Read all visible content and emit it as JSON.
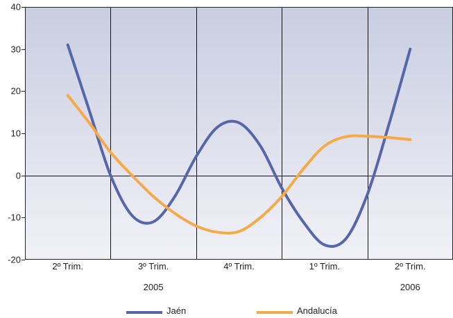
{
  "chart_data": {
    "type": "line",
    "categories": [
      "2º Trim.",
      "3º Trim.",
      "4º Trim.",
      "1º Trim.",
      "2º Trim."
    ],
    "years": [
      {
        "label": "2005",
        "category_index": 1
      },
      {
        "label": "2006",
        "category_index": 4
      }
    ],
    "ylim": [
      -20,
      40
    ],
    "yticks": [
      -20,
      -10,
      0,
      10,
      20,
      30,
      40
    ],
    "grid": true,
    "legend_position": "bottom",
    "colors": {
      "Jaén": "#5566aa",
      "Andalucía": "#f5aa48"
    },
    "series": [
      {
        "name": "Jaén",
        "x": [
          0,
          0.25,
          0.5,
          0.75,
          1,
          1.25,
          1.5,
          1.75,
          2,
          2.25,
          2.5,
          2.75,
          3,
          3.25,
          3.5,
          3.75,
          4
        ],
        "values": [
          31,
          15.5,
          0,
          -9.5,
          -11,
          -5,
          4.5,
          11.5,
          12.5,
          7,
          -3,
          -11,
          -16.5,
          -15,
          -4.5,
          12,
          30
        ]
      },
      {
        "name": "Andalucía",
        "x": [
          0,
          0.25,
          0.5,
          0.75,
          1,
          1.25,
          1.5,
          1.75,
          2,
          2.25,
          2.5,
          2.75,
          3,
          3.25,
          3.5,
          3.75,
          4
        ],
        "values": [
          19,
          12.5,
          5.5,
          0,
          -5,
          -9,
          -12,
          -13.5,
          -13.3,
          -10,
          -5,
          1.5,
          7,
          9.2,
          9.3,
          9,
          8.5
        ]
      }
    ]
  }
}
